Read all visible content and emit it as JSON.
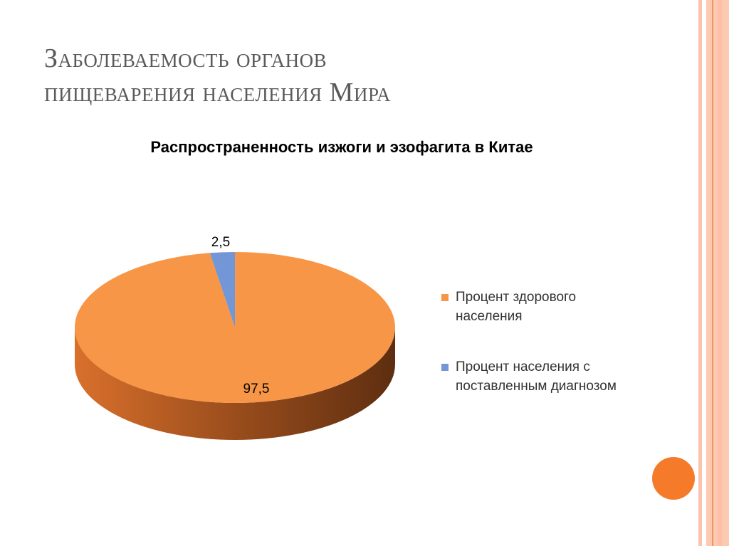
{
  "slide": {
    "title_line1": "Заболеваемость органов",
    "title_line2": "пищеварения населения Мира"
  },
  "colors": {
    "healthy": "#f79646",
    "diagnosed": "#7396d6",
    "accent": "#f57b2b",
    "border": "#fbc0a8"
  },
  "chart_data": {
    "type": "pie",
    "title": "Распространенность изжоги и эзофагита в Китае",
    "categories": [
      "Процент здорового населения",
      "Процент населения с поставленным диагнозом"
    ],
    "values": [
      97.5,
      2.5
    ],
    "data_labels": [
      "97,5",
      "2,5"
    ],
    "style": "3d",
    "legend_position": "right"
  }
}
